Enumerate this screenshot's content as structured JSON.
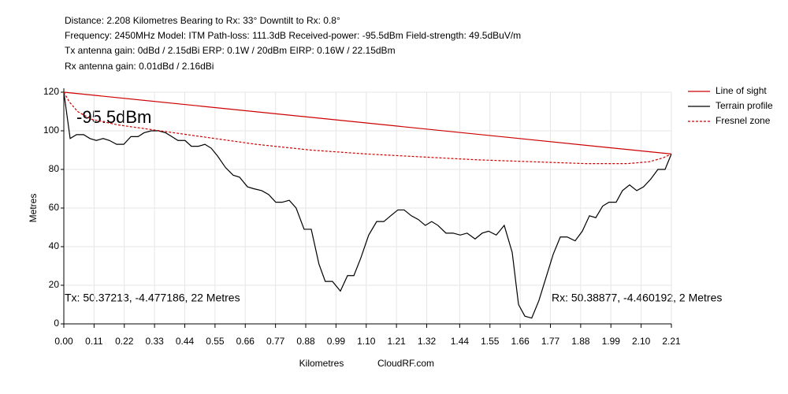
{
  "chart_data": {
    "type": "line",
    "header_lines": [
      "Distance: 2.208 Kilometres Bearing to Rx: 33° Downtilt to Rx: 0.8°",
      "Frequency: 2450MHz  Model: ITM  Path-loss: 111.3dB  Received-power: -95.5dBm  Field-strength: 49.5dBuV/m",
      "Tx antenna gain: 0dBd / 2.15dBi  ERP: 0.1W / 20dBm  EIRP: 0.16W / 22.15dBm",
      "Rx antenna gain: 0.01dBd / 2.16dBi"
    ],
    "annotations": [
      "-95.5dBm",
      "Tx: 50.37213, -4.477186, 22 Metres",
      "Rx: 50.38877, -4.460192, 2 Metres"
    ],
    "xlabel": "Kilometres",
    "credit": "CloudRF.com",
    "ylabel": "Metres",
    "xlim": [
      0,
      2.21
    ],
    "ylim": [
      0,
      120
    ],
    "xticks": [
      {
        "value": 0,
        "label": "0.00"
      },
      0.11,
      0.22,
      0.33,
      0.44,
      0.55,
      0.66,
      0.77,
      0.88,
      0.99,
      {
        "value": 1.1,
        "label": "1.10"
      },
      1.21,
      1.32,
      1.44,
      1.55,
      1.66,
      1.77,
      1.88,
      1.99,
      {
        "value": 2.1,
        "label": "2.10"
      },
      2.21
    ],
    "yticks": [
      0,
      20,
      40,
      60,
      80,
      100,
      120
    ],
    "grid": true,
    "legend": "upper right",
    "series": [
      {
        "name": "Line of sight",
        "color": "#cc0000",
        "dash": false,
        "x": [
          0,
          2.21
        ],
        "values": [
          120,
          88
        ]
      },
      {
        "name": "Terrain profile",
        "color": "#000000",
        "dash": false,
        "x": [
          0,
          0.023,
          0.046,
          0.072,
          0.095,
          0.118,
          0.143,
          0.166,
          0.192,
          0.218,
          0.244,
          0.27,
          0.292,
          0.318,
          0.344,
          0.37,
          0.393,
          0.415,
          0.441,
          0.464,
          0.49,
          0.513,
          0.536,
          0.559,
          0.588,
          0.616,
          0.639,
          0.668,
          0.691,
          0.72,
          0.745,
          0.771,
          0.794,
          0.82,
          0.845,
          0.874,
          0.9,
          0.928,
          0.951,
          0.977,
          1.006,
          1.032,
          1.055,
          1.08,
          1.109,
          1.138,
          1.164,
          1.189,
          1.215,
          1.238,
          1.264,
          1.29,
          1.315,
          1.338,
          1.361,
          1.39,
          1.416,
          1.442,
          1.467,
          1.496,
          1.522,
          1.545,
          1.573,
          1.602,
          1.631,
          1.654,
          1.677,
          1.702,
          1.728,
          1.754,
          1.78,
          1.806,
          1.831,
          1.86,
          1.886,
          1.912,
          1.935,
          1.96,
          1.983,
          2.009,
          2.032,
          2.058,
          2.084,
          2.109,
          2.135,
          2.161,
          2.187,
          2.21
        ],
        "values": [
          120,
          96,
          98,
          98,
          96,
          95,
          96,
          95,
          93,
          93,
          97,
          97,
          99,
          100,
          100,
          99,
          97,
          95,
          95,
          92,
          92,
          93,
          91,
          87,
          81,
          77,
          76,
          71,
          70,
          69,
          67,
          63,
          63,
          64,
          60,
          49,
          49,
          31,
          22,
          22,
          17,
          25,
          25,
          34,
          46,
          53,
          53,
          56,
          59,
          59,
          56,
          54,
          51,
          53,
          51,
          47,
          47,
          46,
          47,
          44,
          47,
          48,
          46,
          51,
          37,
          10,
          4,
          3,
          12,
          24,
          36,
          45,
          45,
          43,
          48,
          56,
          55,
          61,
          63,
          63,
          69,
          72,
          69,
          71,
          75,
          80,
          80,
          88
        ]
      },
      {
        "name": "Fresnel zone",
        "color": "#cc0000",
        "dash": true,
        "x": [
          0,
          0.02,
          0.05,
          0.1,
          0.2,
          0.35,
          0.5,
          0.7,
          0.9,
          1.1,
          1.3,
          1.5,
          1.7,
          1.9,
          2.05,
          2.13,
          2.18,
          2.21
        ],
        "values": [
          120,
          115,
          110,
          106,
          103,
          100,
          97,
          93,
          90,
          88,
          86.5,
          85,
          84,
          83,
          83,
          84,
          86,
          88
        ]
      }
    ]
  }
}
